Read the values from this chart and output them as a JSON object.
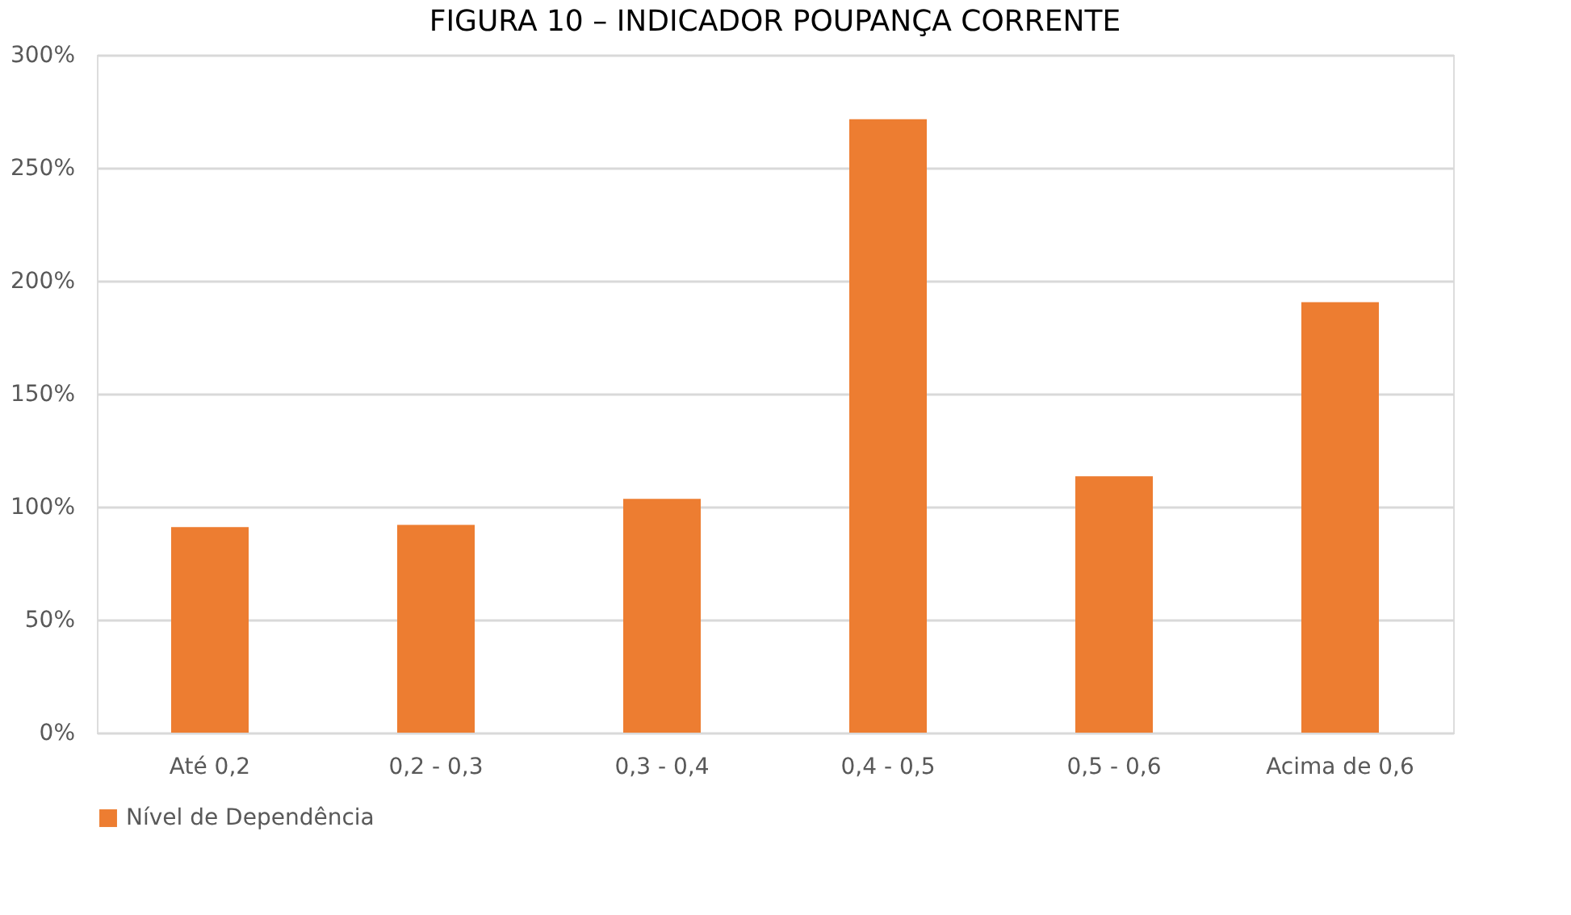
{
  "chart_data": {
    "type": "bar",
    "title": "FIGURA 10 – INDICADOR POUPANÇA CORRENTE",
    "categories": [
      "Até 0,2",
      "0,2 - 0,3",
      "0,3 - 0,4",
      "0,4 - 0,5",
      "0,5 - 0,6",
      "Acima de 0,6"
    ],
    "series": [
      {
        "name": "Nível de Dependência",
        "color": "#ed7d31",
        "values": [
          91,
          92,
          103.5,
          271.5,
          113.5,
          190.5
        ]
      }
    ],
    "ylim": [
      0,
      300
    ],
    "yticks": [
      {
        "value": 0,
        "label": "0%"
      },
      {
        "value": 50,
        "label": "50%"
      },
      {
        "value": 100,
        "label": "100%"
      },
      {
        "value": 150,
        "label": "150%"
      },
      {
        "value": 200,
        "label": "200%"
      },
      {
        "value": 250,
        "label": "250%"
      },
      {
        "value": 300,
        "label": "300%"
      }
    ],
    "grid": "y",
    "legend": "bottom"
  }
}
